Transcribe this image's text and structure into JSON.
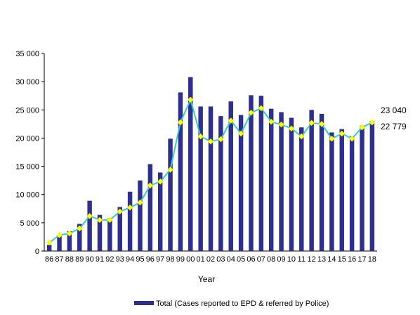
{
  "chart_data": {
    "type": "bar",
    "categories": [
      "86",
      "87",
      "88",
      "89",
      "90",
      "91",
      "92",
      "93",
      "94",
      "95",
      "96",
      "97",
      "98",
      "99",
      "00",
      "01",
      "02",
      "03",
      "04",
      "05",
      "06",
      "07",
      "08",
      "09",
      "10",
      "11",
      "12",
      "13",
      "14",
      "15",
      "16",
      "17",
      "18"
    ],
    "series": [
      {
        "name": "Total (Cases reported to EPD & referred by Police)",
        "type": "bar",
        "color": "#2E2E8E",
        "values": [
          1100,
          2600,
          3500,
          4800,
          8900,
          6400,
          5800,
          7800,
          10500,
          12500,
          15400,
          13900,
          19900,
          28100,
          30800,
          25600,
          25600,
          23900,
          26500,
          24100,
          27600,
          27500,
          25200,
          24600,
          23600,
          21900,
          25000,
          24300,
          21000,
          21600,
          20300,
          22200,
          23040
        ]
      },
      {
        "type": "line",
        "color": "#33CCCC",
        "marker_color": "#FFFF00",
        "values": [
          1500,
          2800,
          3100,
          4000,
          6200,
          5500,
          5500,
          7000,
          7700,
          8600,
          11600,
          12300,
          14400,
          22800,
          26800,
          20300,
          19400,
          19800,
          23100,
          20800,
          24500,
          25300,
          22900,
          22400,
          21700,
          20300,
          22700,
          22500,
          19900,
          20800,
          19900,
          21900,
          22779
        ]
      }
    ],
    "annotations": [
      "23 040",
      "22 779"
    ],
    "xlabel": "Year",
    "ylabel": "",
    "ylim": [
      0,
      35000
    ],
    "yticks": [
      0,
      5000,
      10000,
      15000,
      20000,
      25000,
      30000,
      35000
    ],
    "ytick_labels": [
      "0",
      "5 000",
      "10 000",
      "15 000",
      "20 000",
      "25 000",
      "30 000",
      "35 000"
    ],
    "grid": false,
    "legend_position": "bottom"
  }
}
